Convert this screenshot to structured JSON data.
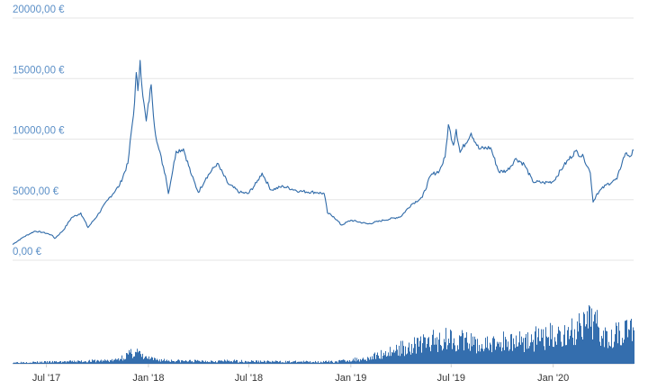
{
  "chart_data": {
    "type": "line",
    "title": "",
    "xlabel": "",
    "ylabel": "",
    "ylim": [
      0,
      20000
    ],
    "grid": true,
    "legend": "none",
    "colors": {
      "line": "#2f6aa8",
      "volume": "#1f5ea6",
      "ytick": "#5b8fc7",
      "xtick": "#333333",
      "grid": "#e6e6e6"
    },
    "y_ticks": [
      {
        "value": 0,
        "label": "0,00 €"
      },
      {
        "value": 5000,
        "label": "5000,00 €"
      },
      {
        "value": 10000,
        "label": "10000,00 €"
      },
      {
        "value": 15000,
        "label": "15000,00 €"
      },
      {
        "value": 20000,
        "label": "20000,00 €"
      }
    ],
    "x_ticks": [
      {
        "value": "2017-07-01",
        "label": "Jul '17"
      },
      {
        "value": "2018-01-01",
        "label": "Jan '18"
      },
      {
        "value": "2018-07-01",
        "label": "Jul '18"
      },
      {
        "value": "2019-01-01",
        "label": "Jan '19"
      },
      {
        "value": "2019-07-01",
        "label": "Jul '19"
      },
      {
        "value": "2020-01-01",
        "label": "Jan '20"
      }
    ],
    "xlim": [
      "2017-05-01",
      "2020-05-25"
    ],
    "series": [
      {
        "values": [
          [
            "2017-05-01",
            1300
          ],
          [
            "2017-05-20",
            1900
          ],
          [
            "2017-06-10",
            2400
          ],
          [
            "2017-06-25",
            2300
          ],
          [
            "2017-07-10",
            2100
          ],
          [
            "2017-07-16",
            1800
          ],
          [
            "2017-08-01",
            2500
          ],
          [
            "2017-08-15",
            3500
          ],
          [
            "2017-09-01",
            3900
          ],
          [
            "2017-09-14",
            2700
          ],
          [
            "2017-10-01",
            3700
          ],
          [
            "2017-10-20",
            5000
          ],
          [
            "2017-11-10",
            6200
          ],
          [
            "2017-11-25",
            8000
          ],
          [
            "2017-12-07",
            13000
          ],
          [
            "2017-12-10",
            15500
          ],
          [
            "2017-12-13",
            14000
          ],
          [
            "2017-12-17",
            16500
          ],
          [
            "2017-12-22",
            13500
          ],
          [
            "2017-12-28",
            11500
          ],
          [
            "2018-01-06",
            14500
          ],
          [
            "2018-01-12",
            11000
          ],
          [
            "2018-01-18",
            9500
          ],
          [
            "2018-02-01",
            7000
          ],
          [
            "2018-02-06",
            5500
          ],
          [
            "2018-02-20",
            9000
          ],
          [
            "2018-03-05",
            9200
          ],
          [
            "2018-03-20",
            7000
          ],
          [
            "2018-04-01",
            5600
          ],
          [
            "2018-04-15",
            6800
          ],
          [
            "2018-05-05",
            8000
          ],
          [
            "2018-05-25",
            6300
          ],
          [
            "2018-06-15",
            5600
          ],
          [
            "2018-06-30",
            5500
          ],
          [
            "2018-07-15",
            6400
          ],
          [
            "2018-07-25",
            7200
          ],
          [
            "2018-08-10",
            5800
          ],
          [
            "2018-09-01",
            6100
          ],
          [
            "2018-10-01",
            5700
          ],
          [
            "2018-11-01",
            5600
          ],
          [
            "2018-11-14",
            5500
          ],
          [
            "2018-11-20",
            3900
          ],
          [
            "2018-12-01",
            3600
          ],
          [
            "2018-12-15",
            2900
          ],
          [
            "2019-01-01",
            3300
          ],
          [
            "2019-02-01",
            3000
          ],
          [
            "2019-03-01",
            3300
          ],
          [
            "2019-04-01",
            3600
          ],
          [
            "2019-04-20",
            4600
          ],
          [
            "2019-05-10",
            5200
          ],
          [
            "2019-05-25",
            7000
          ],
          [
            "2019-06-10",
            7400
          ],
          [
            "2019-06-20",
            8500
          ],
          [
            "2019-06-26",
            11200
          ],
          [
            "2019-07-05",
            9500
          ],
          [
            "2019-07-10",
            10800
          ],
          [
            "2019-07-17",
            8900
          ],
          [
            "2019-08-06",
            10500
          ],
          [
            "2019-08-20",
            9200
          ],
          [
            "2019-09-10",
            9300
          ],
          [
            "2019-09-25",
            7300
          ],
          [
            "2019-10-10",
            7400
          ],
          [
            "2019-10-26",
            8400
          ],
          [
            "2019-11-10",
            7900
          ],
          [
            "2019-11-25",
            6500
          ],
          [
            "2019-12-15",
            6400
          ],
          [
            "2020-01-01",
            6500
          ],
          [
            "2020-01-20",
            7800
          ],
          [
            "2020-02-10",
            9000
          ],
          [
            "2020-02-25",
            8500
          ],
          [
            "2020-03-08",
            7200
          ],
          [
            "2020-03-13",
            4800
          ],
          [
            "2020-03-20",
            5500
          ],
          [
            "2020-04-05",
            6200
          ],
          [
            "2020-04-25",
            6700
          ],
          [
            "2020-05-05",
            8200
          ],
          [
            "2020-05-10",
            8800
          ],
          [
            "2020-05-20",
            8600
          ],
          [
            "2020-05-25",
            9100
          ]
        ]
      }
    ],
    "volume": [
      [
        "2017-05-01",
        2
      ],
      [
        "2017-08-01",
        3
      ],
      [
        "2017-11-01",
        5
      ],
      [
        "2017-12-10",
        18
      ],
      [
        "2017-12-20",
        10
      ],
      [
        "2018-01-10",
        6
      ],
      [
        "2018-03-01",
        4
      ],
      [
        "2018-06-01",
        4
      ],
      [
        "2018-09-01",
        3
      ],
      [
        "2018-12-01",
        3
      ],
      [
        "2019-02-01",
        8
      ],
      [
        "2019-03-01",
        15
      ],
      [
        "2019-04-01",
        22
      ],
      [
        "2019-05-01",
        28
      ],
      [
        "2019-06-01",
        33
      ],
      [
        "2019-07-01",
        38
      ],
      [
        "2019-08-01",
        30
      ],
      [
        "2019-09-01",
        26
      ],
      [
        "2019-10-01",
        31
      ],
      [
        "2019-11-01",
        34
      ],
      [
        "2019-12-01",
        36
      ],
      [
        "2020-01-01",
        40
      ],
      [
        "2020-02-01",
        45
      ],
      [
        "2020-03-01",
        52
      ],
      [
        "2020-03-13",
        65
      ],
      [
        "2020-04-01",
        44
      ],
      [
        "2020-05-01",
        48
      ],
      [
        "2020-05-25",
        50
      ]
    ]
  }
}
